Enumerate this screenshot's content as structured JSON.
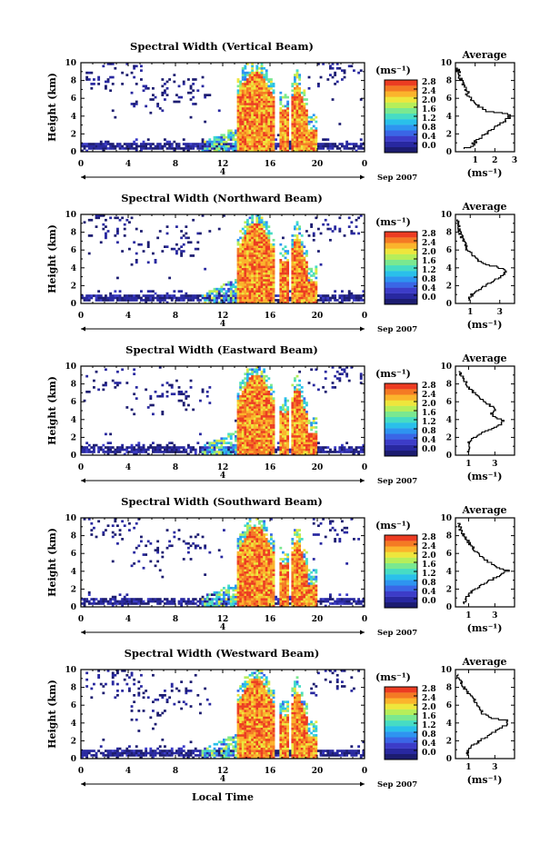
{
  "figure": {
    "xlabel": "Local Time",
    "ylabel": "Height (km)",
    "date_label": "Sep 2007",
    "day_label": "4",
    "colorbar_unit": "(ms⁻¹)",
    "avg_title": "Average",
    "avg_unit": "(ms⁻¹)"
  },
  "colors": {
    "scale": [
      "#1c1c70",
      "#2828a0",
      "#3c3cc8",
      "#3a66e6",
      "#2e94f0",
      "#2ac0ea",
      "#46dcc4",
      "#7ae890",
      "#b6ee5a",
      "#eee63c",
      "#fbb42c",
      "#f47a24",
      "#ec3c22"
    ],
    "frame": "#000000"
  },
  "chart_data": [
    {
      "type": "heatmap",
      "title": "Spectral Width (Vertical Beam)",
      "x_ticks": [
        "0",
        "4",
        "8",
        "12",
        "16",
        "20",
        "0"
      ],
      "y_ticks": [
        "0",
        "2",
        "4",
        "6",
        "8",
        "10"
      ],
      "xlim": [
        0,
        24
      ],
      "ylim": [
        0,
        10
      ],
      "colorbar_ticks": [
        "0.0",
        "0.4",
        "0.8",
        "1.2",
        "1.6",
        "2.0",
        "2.4",
        "2.8"
      ],
      "colorbar_range": [
        0,
        3.2
      ],
      "profile": {
        "x_ticks": [
          "1",
          "2",
          "3"
        ],
        "xlim": [
          0,
          3
        ],
        "points": [
          [
            0.5,
            0.3
          ],
          [
            0.9,
            0.6
          ],
          [
            1.0,
            1.0
          ],
          [
            1.3,
            1.5
          ],
          [
            1.6,
            2.0
          ],
          [
            1.9,
            2.5
          ],
          [
            2.2,
            3.0
          ],
          [
            2.6,
            3.6
          ],
          [
            2.8,
            4.0
          ],
          [
            2.4,
            4.3
          ],
          [
            1.6,
            4.5
          ],
          [
            1.2,
            5.0
          ],
          [
            0.9,
            5.5
          ],
          [
            0.6,
            6.5
          ],
          [
            0.4,
            7.5
          ],
          [
            0.2,
            8.5
          ],
          [
            0.1,
            9.5
          ]
        ]
      }
    },
    {
      "type": "heatmap",
      "title": "Spectral Width (Northward Beam)",
      "x_ticks": [
        "0",
        "4",
        "8",
        "12",
        "16",
        "20",
        "0"
      ],
      "y_ticks": [
        "0",
        "2",
        "4",
        "6",
        "8",
        "10"
      ],
      "xlim": [
        0,
        24
      ],
      "ylim": [
        0,
        10
      ],
      "colorbar_ticks": [
        "0.0",
        "0.4",
        "0.8",
        "1.2",
        "1.6",
        "2.0",
        "2.4",
        "2.8"
      ],
      "colorbar_range": [
        0,
        3.2
      ],
      "profile": {
        "x_ticks": [
          "1",
          "3"
        ],
        "xlim": [
          0,
          4
        ],
        "points": [
          [
            0.8,
            0.3
          ],
          [
            1.0,
            0.7
          ],
          [
            1.3,
            1.2
          ],
          [
            1.9,
            1.8
          ],
          [
            2.6,
            2.5
          ],
          [
            3.1,
            3.0
          ],
          [
            3.5,
            3.5
          ],
          [
            3.3,
            3.8
          ],
          [
            2.4,
            4.2
          ],
          [
            1.7,
            4.6
          ],
          [
            1.2,
            5.2
          ],
          [
            0.8,
            6.0
          ],
          [
            0.5,
            7.0
          ],
          [
            0.3,
            8.0
          ],
          [
            0.1,
            9.5
          ]
        ]
      }
    },
    {
      "type": "heatmap",
      "title": "Spectral Width (Eastward Beam)",
      "x_ticks": [
        "0",
        "4",
        "8",
        "12",
        "16",
        "20",
        "0"
      ],
      "y_ticks": [
        "0",
        "2",
        "4",
        "6",
        "8",
        "10"
      ],
      "xlim": [
        0,
        24
      ],
      "ylim": [
        0,
        10
      ],
      "colorbar_ticks": [
        "0.0",
        "0.4",
        "0.8",
        "1.2",
        "1.6",
        "2.0",
        "2.4",
        "2.8"
      ],
      "colorbar_range": [
        0,
        3.2
      ],
      "profile": {
        "x_ticks": [
          "1",
          "3"
        ],
        "xlim": [
          0,
          4.5
        ],
        "points": [
          [
            0.9,
            0.3
          ],
          [
            1.0,
            0.8
          ],
          [
            1.1,
            1.5
          ],
          [
            1.5,
            2.0
          ],
          [
            2.2,
            2.6
          ],
          [
            3.0,
            3.0
          ],
          [
            3.4,
            3.4
          ],
          [
            3.6,
            3.8
          ],
          [
            3.0,
            4.2
          ],
          [
            2.8,
            4.6
          ],
          [
            3.1,
            5.0
          ],
          [
            2.6,
            5.6
          ],
          [
            1.8,
            6.4
          ],
          [
            1.1,
            7.4
          ],
          [
            0.6,
            8.5
          ],
          [
            0.2,
            9.5
          ]
        ]
      }
    },
    {
      "type": "heatmap",
      "title": "Spectral Width (Southward Beam)",
      "x_ticks": [
        "0",
        "4",
        "8",
        "12",
        "16",
        "20",
        "0"
      ],
      "y_ticks": [
        "0",
        "2",
        "4",
        "6",
        "8",
        "10"
      ],
      "xlim": [
        0,
        24
      ],
      "ylim": [
        0,
        10
      ],
      "colorbar_ticks": [
        "0.0",
        "0.4",
        "0.8",
        "1.2",
        "1.6",
        "2.0",
        "2.4",
        "2.8"
      ],
      "colorbar_range": [
        0,
        3.2
      ],
      "profile": {
        "x_ticks": [
          "1",
          "3"
        ],
        "xlim": [
          0,
          4.5
        ],
        "points": [
          [
            0.6,
            0.3
          ],
          [
            0.8,
            0.8
          ],
          [
            1.0,
            1.3
          ],
          [
            1.4,
            1.8
          ],
          [
            2.0,
            2.4
          ],
          [
            2.6,
            2.9
          ],
          [
            3.3,
            3.4
          ],
          [
            4.0,
            4.0
          ],
          [
            3.2,
            4.4
          ],
          [
            2.5,
            5.0
          ],
          [
            1.8,
            5.8
          ],
          [
            1.3,
            6.6
          ],
          [
            0.8,
            7.6
          ],
          [
            0.4,
            8.6
          ],
          [
            0.2,
            9.5
          ]
        ]
      }
    },
    {
      "type": "heatmap",
      "title": "Spectral Width (Westward Beam)",
      "x_ticks": [
        "0",
        "4",
        "8",
        "12",
        "16",
        "20",
        "0"
      ],
      "y_ticks": [
        "0",
        "2",
        "4",
        "6",
        "8",
        "10"
      ],
      "xlim": [
        0,
        24
      ],
      "ylim": [
        0,
        10
      ],
      "colorbar_ticks": [
        "0.0",
        "0.4",
        "0.8",
        "1.2",
        "1.6",
        "2.0",
        "2.4",
        "2.8"
      ],
      "colorbar_range": [
        0,
        3.2
      ],
      "profile": {
        "x_ticks": [
          "1",
          "3"
        ],
        "xlim": [
          0,
          4.5
        ],
        "points": [
          [
            0.8,
            0.3
          ],
          [
            1.0,
            0.8
          ],
          [
            1.3,
            1.4
          ],
          [
            1.9,
            2.0
          ],
          [
            2.6,
            2.6
          ],
          [
            3.3,
            3.2
          ],
          [
            3.9,
            3.8
          ],
          [
            4.0,
            4.2
          ],
          [
            2.8,
            4.5
          ],
          [
            2.1,
            5.0
          ],
          [
            1.8,
            5.8
          ],
          [
            1.3,
            6.8
          ],
          [
            0.7,
            7.8
          ],
          [
            0.3,
            8.8
          ],
          [
            0.1,
            9.6
          ]
        ]
      }
    }
  ]
}
